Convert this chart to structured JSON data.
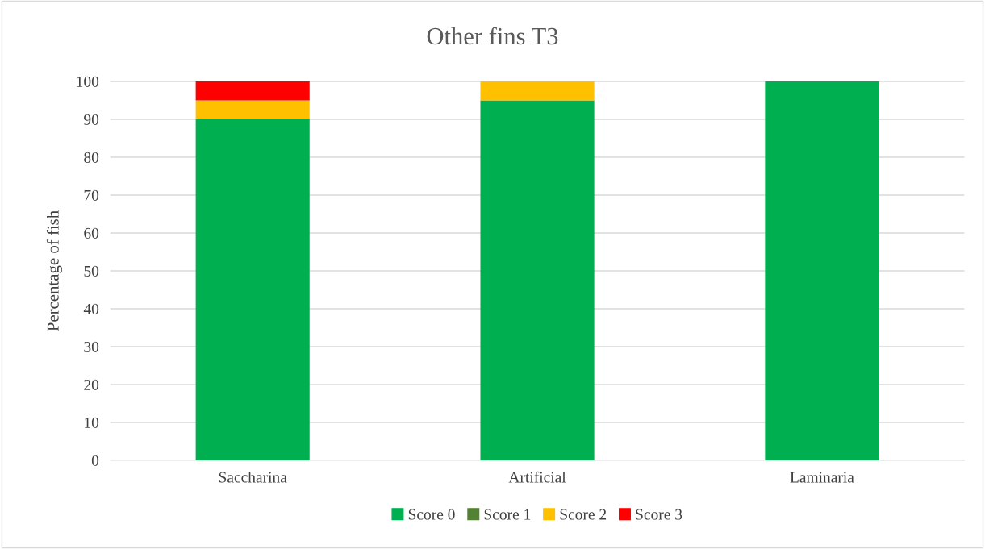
{
  "chart_data": {
    "type": "bar",
    "title": "Other fins T3",
    "ylabel": "Percentage of fish",
    "categories": [
      "Saccharina",
      "Artificial",
      "Laminaria"
    ],
    "series": [
      {
        "name": "Score 0",
        "color": "#00b050",
        "values": [
          90,
          95,
          100
        ]
      },
      {
        "name": "Score 1",
        "color": "#548235",
        "values": [
          0,
          0,
          0
        ]
      },
      {
        "name": "Score 2",
        "color": "#ffc000",
        "values": [
          5,
          5,
          0
        ]
      },
      {
        "name": "Score 3",
        "color": "#ff0000",
        "values": [
          5,
          0,
          0
        ]
      }
    ],
    "stacked": true,
    "ylim": [
      0,
      100
    ],
    "yticks": [
      0,
      10,
      20,
      30,
      40,
      50,
      60,
      70,
      80,
      90,
      100
    ],
    "grid": "y",
    "legend": "bottom"
  }
}
